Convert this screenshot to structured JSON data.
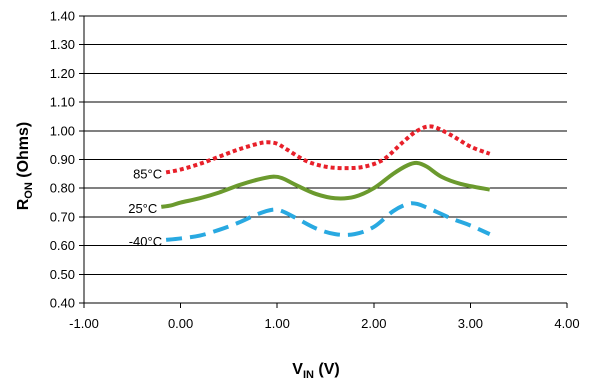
{
  "chart_data": {
    "type": "line",
    "title": "",
    "xlabel": {
      "main": "V",
      "sub": "IN",
      "suffix": " (V)"
    },
    "ylabel": {
      "main": "R",
      "sub": "ON",
      "suffix": " (Ohms)"
    },
    "xlim": [
      -1.0,
      4.0
    ],
    "ylim": [
      0.4,
      1.4
    ],
    "x_ticks": [
      -1.0,
      0.0,
      1.0,
      2.0,
      3.0,
      4.0
    ],
    "x_tick_labels": [
      "-1.00",
      "0.00",
      "1.00",
      "2.00",
      "3.00",
      "4.00"
    ],
    "y_ticks": [
      0.4,
      0.5,
      0.6,
      0.7,
      0.8,
      0.9,
      1.0,
      1.1,
      1.2,
      1.3,
      1.4
    ],
    "y_tick_labels": [
      "0.40",
      "0.50",
      "0.60",
      "0.70",
      "0.80",
      "0.90",
      "1.00",
      "1.10",
      "1.20",
      "1.30",
      "1.40"
    ],
    "grid": {
      "horizontal": true,
      "vertical": false
    },
    "legend": "inline labels at left of curves",
    "series": [
      {
        "name": "85°C",
        "color": "#e8202a",
        "dash": "dotted",
        "x": [
          -0.15,
          0.0,
          0.2,
          0.4,
          0.6,
          0.8,
          0.9,
          1.0,
          1.1,
          1.3,
          1.5,
          1.7,
          1.9,
          2.1,
          2.3,
          2.45,
          2.6,
          2.8,
          3.0,
          3.2
        ],
        "y": [
          0.855,
          0.865,
          0.885,
          0.91,
          0.935,
          0.955,
          0.96,
          0.955,
          0.935,
          0.895,
          0.875,
          0.87,
          0.875,
          0.9,
          0.96,
          1.0,
          1.015,
          0.985,
          0.945,
          0.92
        ]
      },
      {
        "name": "25°C",
        "color": "#6b9a2e",
        "dash": "solid",
        "x": [
          -0.2,
          -0.1,
          0.0,
          0.2,
          0.4,
          0.6,
          0.8,
          0.95,
          1.05,
          1.2,
          1.4,
          1.6,
          1.8,
          2.0,
          2.2,
          2.35,
          2.45,
          2.55,
          2.7,
          2.9,
          3.2
        ],
        "y": [
          0.735,
          0.74,
          0.75,
          0.765,
          0.785,
          0.81,
          0.83,
          0.84,
          0.835,
          0.81,
          0.78,
          0.765,
          0.77,
          0.8,
          0.85,
          0.88,
          0.888,
          0.875,
          0.84,
          0.815,
          0.795
        ]
      },
      {
        "name": "-40°C",
        "color": "#29a9e1",
        "dash": "dashed",
        "x": [
          -0.15,
          0.0,
          0.2,
          0.4,
          0.6,
          0.8,
          0.95,
          1.05,
          1.2,
          1.4,
          1.6,
          1.8,
          2.0,
          2.2,
          2.35,
          2.45,
          2.6,
          2.8,
          3.0,
          3.2
        ],
        "y": [
          0.62,
          0.625,
          0.635,
          0.655,
          0.68,
          0.71,
          0.725,
          0.72,
          0.695,
          0.66,
          0.64,
          0.64,
          0.665,
          0.72,
          0.745,
          0.745,
          0.725,
          0.695,
          0.67,
          0.64
        ]
      }
    ]
  }
}
